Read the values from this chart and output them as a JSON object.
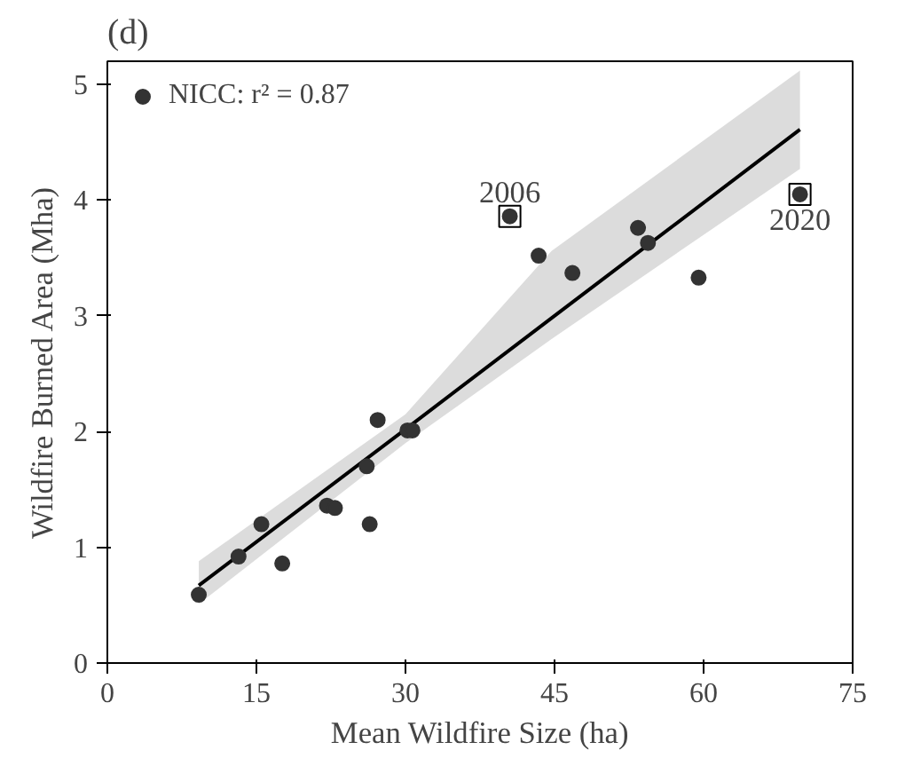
{
  "chart_data": {
    "type": "scatter",
    "title": "(d)",
    "xlabel": "Mean Wildfire Size (ha)",
    "ylabel": "Wildfire Burned Area (Mha)",
    "xlim": [
      0,
      75
    ],
    "ylim": [
      0,
      5.2
    ],
    "xticks": [
      0,
      15,
      30,
      45,
      60,
      75
    ],
    "yticks": [
      0,
      1,
      2,
      3,
      4,
      5
    ],
    "grid": false,
    "legend": "top left",
    "series": [
      {
        "name": "NICC: r² = 0.87",
        "color": "#333333",
        "marker": "circle",
        "x": [
          9.2,
          13.2,
          15.5,
          17.6,
          22.1,
          22.9,
          26.1,
          26.4,
          27.2,
          30.2,
          30.7,
          40.5,
          43.4,
          46.8,
          53.4,
          54.4,
          59.5,
          69.7
        ],
        "values": [
          0.59,
          0.92,
          1.2,
          0.86,
          1.36,
          1.34,
          1.7,
          1.2,
          2.1,
          2.01,
          2.01,
          3.86,
          3.52,
          3.37,
          3.76,
          3.63,
          3.33,
          4.05
        ]
      },
      {
        "type": "line",
        "color": "#000000",
        "marker": "none",
        "x": [
          9.2,
          30,
          44.7,
          69.7
        ],
        "values": [
          0.67,
          2.02,
          2.98,
          4.61
        ],
        "lower": [
          0.51,
          1.9,
          2.8,
          4.27
        ],
        "upper": [
          0.88,
          2.15,
          3.56,
          5.12
        ]
      }
    ],
    "annotations": [
      {
        "text": "2006",
        "x": 40.5,
        "y": 3.86
      },
      {
        "text": "2020",
        "x": 69.7,
        "y": 4.05
      }
    ]
  }
}
